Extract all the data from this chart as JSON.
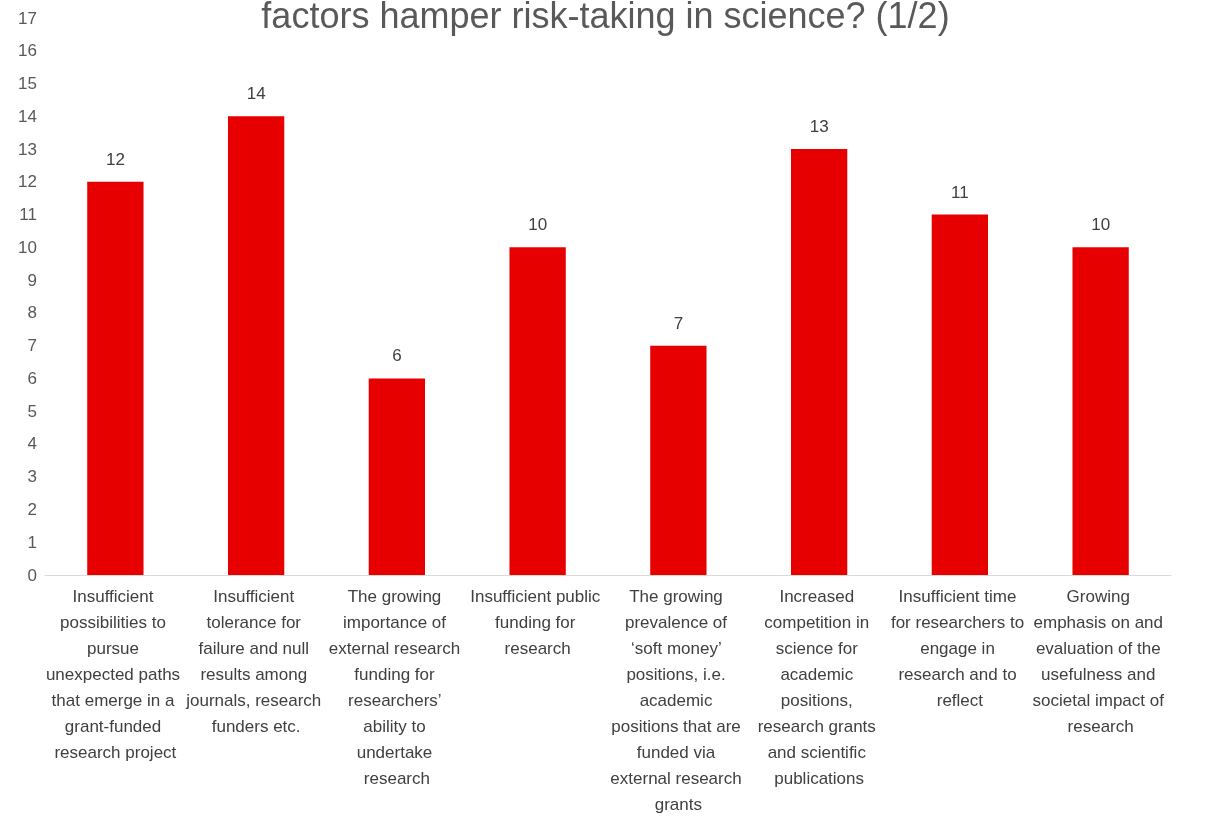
{
  "chart_data": {
    "type": "bar",
    "title": "factors hamper risk-taking in science? (1/2)",
    "categories": [
      "Insufficient possibilities to pursue unexpected paths that emerge in a grant-funded research project",
      "Insufficient tolerance for failure and null results among journals, research funders etc.",
      "The growing importance of external research funding for researchers’ ability to undertake research",
      "Insufficient public funding for research",
      "The growing prevalence of ‘soft money’ positions, i.e. academic positions that are funded via external research grants",
      "Increased competition in science for academic positions, research grants and scientific publications",
      "Insufficient time for researchers to engage in research and to reflect",
      "Growing emphasis on and evaluation of the usefulness and societal impact of research"
    ],
    "values": [
      12,
      14,
      6,
      10,
      7,
      13,
      11,
      10
    ],
    "color": "#e60000",
    "ylim": [
      0,
      17
    ],
    "yticks": [
      0,
      1,
      2,
      3,
      4,
      5,
      6,
      7,
      8,
      9,
      10,
      11,
      12,
      13,
      14,
      15,
      16,
      17
    ],
    "grid": false,
    "data_labels": true
  }
}
